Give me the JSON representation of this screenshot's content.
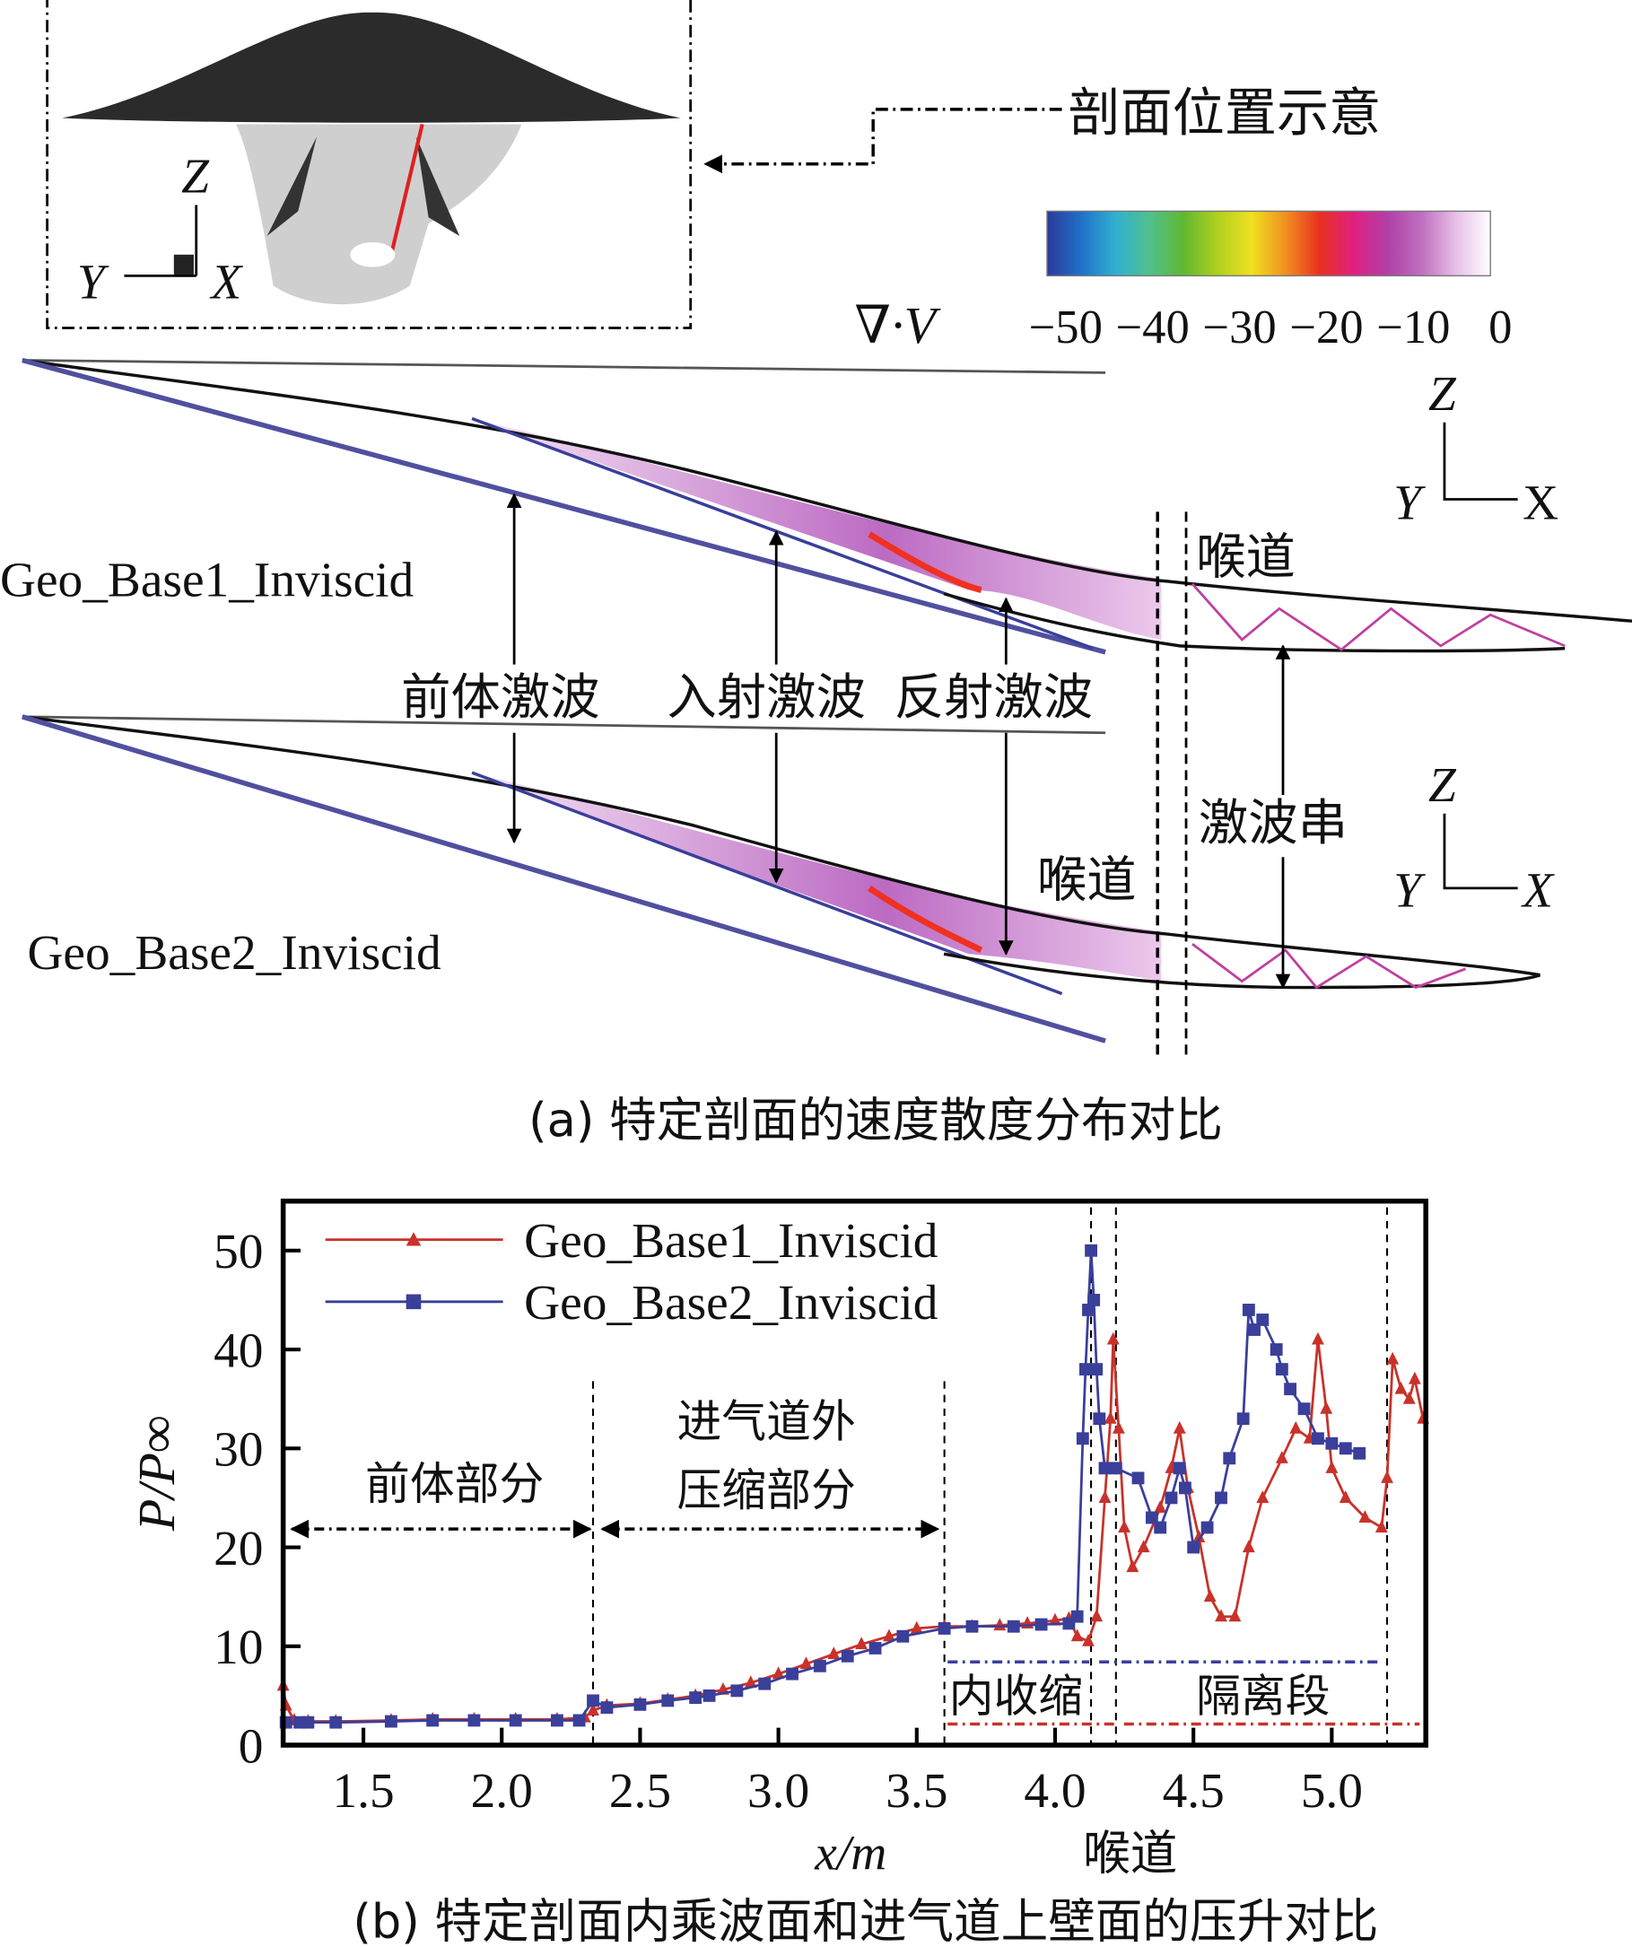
{
  "panel_a": {
    "inset_label": "剖面位置示意",
    "inset_axes": {
      "z": "Z",
      "y": "Y",
      "x": "X"
    },
    "colorbar": {
      "symbol": "∇·V",
      "ticks": [
        "−50",
        "−40",
        "−30",
        "−20",
        "−10",
        "0"
      ],
      "colors": [
        "#2a3a9a",
        "#2070c8",
        "#30b0d0",
        "#50c090",
        "#60b830",
        "#b0d020",
        "#f0e020",
        "#f09020",
        "#e83020",
        "#e02080",
        "#b040a8",
        "#c070c0",
        "#e8c0e8",
        "#ffffff"
      ]
    },
    "case1_label": "Geo_Base1_Inviscid",
    "case2_label": "Geo_Base2_Inviscid",
    "shock_labels": {
      "forebody": "前体激波",
      "incident": "入射激波",
      "reflected": "反射激波"
    },
    "throat_label_1": "喉道",
    "throat_label_2": "喉道",
    "shock_train_label": "激波串",
    "axes_1": {
      "z": "Z",
      "y": "Y",
      "x": "X"
    },
    "axes_2": {
      "z": "Z",
      "y": "Y",
      "x": "X"
    },
    "caption": "(a) 特定剖面的速度散度分布对比"
  },
  "panel_b": {
    "caption": "(b) 特定剖面内乘波面和进气道上壁面的压升对比",
    "throat_label": "喉道",
    "regions": {
      "forebody": "前体部分",
      "external_1": "进气道外",
      "external_2": "压缩部分",
      "internal": "内收缩",
      "isolator": "隔离段"
    }
  },
  "chart_data": {
    "type": "line",
    "title": "",
    "xlabel": "x/m",
    "ylabel": "P/P∞",
    "xlim": [
      1.21,
      5.34
    ],
    "ylim": [
      0,
      55
    ],
    "xticks": [
      "1.5",
      "2.0",
      "2.5",
      "3.0",
      "3.5",
      "4.0",
      "4.5",
      "5.0"
    ],
    "xtick_values": [
      1.5,
      2.0,
      2.5,
      3.0,
      3.5,
      4.0,
      4.5,
      5.0
    ],
    "yticks": [
      "0",
      "10",
      "20",
      "30",
      "40",
      "50"
    ],
    "ytick_values": [
      0,
      10,
      20,
      30,
      40,
      50
    ],
    "grid": false,
    "legend_position": "top-left",
    "region_boundaries": [
      2.33,
      3.6,
      4.13,
      4.22,
      5.2
    ],
    "series": [
      {
        "name": "Geo_Base1_Inviscid",
        "color": "#c8322a",
        "marker": "triangle",
        "x": [
          1.21,
          1.22,
          1.25,
          1.3,
          1.4,
          1.6,
          1.75,
          1.9,
          2.05,
          2.2,
          2.3,
          2.33,
          2.38,
          2.5,
          2.6,
          2.7,
          2.8,
          2.9,
          3.0,
          3.1,
          3.2,
          3.3,
          3.4,
          3.5,
          3.6,
          3.7,
          3.8,
          3.9,
          4.0,
          4.05,
          4.08,
          4.12,
          4.15,
          4.18,
          4.2,
          4.21,
          4.23,
          4.25,
          4.28,
          4.32,
          4.38,
          4.42,
          4.45,
          4.48,
          4.52,
          4.56,
          4.6,
          4.65,
          4.7,
          4.75,
          4.82,
          4.87,
          4.92,
          4.95,
          4.98,
          5.0,
          5.05,
          5.12,
          5.18,
          5.2,
          5.22,
          5.25,
          5.28,
          5.3,
          5.33
        ],
        "y": [
          6,
          4,
          2.5,
          2.4,
          2.4,
          2.5,
          2.6,
          2.6,
          2.6,
          2.6,
          2.8,
          3.5,
          4.0,
          4.2,
          4.6,
          5.0,
          5.6,
          6.3,
          7.2,
          8.2,
          9.2,
          10.2,
          11.0,
          11.8,
          12.0,
          12.0,
          12.1,
          12.3,
          12.6,
          12.8,
          11.0,
          10.5,
          13,
          25,
          33,
          41,
          32,
          22,
          18,
          20,
          24,
          28,
          32,
          26,
          21,
          15,
          13,
          13,
          20,
          25,
          29,
          32,
          31,
          41,
          34,
          28,
          25,
          23,
          22,
          27,
          39,
          36,
          35,
          37,
          33
        ]
      },
      {
        "name": "Geo_Base2_Inviscid",
        "color": "#3a3f9a",
        "marker": "square",
        "x": [
          1.22,
          1.27,
          1.3,
          1.4,
          1.6,
          1.75,
          1.9,
          2.05,
          2.2,
          2.28,
          2.33,
          2.38,
          2.5,
          2.6,
          2.7,
          2.75,
          2.85,
          2.95,
          3.05,
          3.15,
          3.25,
          3.35,
          3.45,
          3.6,
          3.7,
          3.85,
          3.95,
          4.05,
          4.08,
          4.1,
          4.11,
          4.12,
          4.13,
          4.14,
          4.15,
          4.16,
          4.18,
          4.22,
          4.3,
          4.35,
          4.38,
          4.42,
          4.45,
          4.47,
          4.5,
          4.55,
          4.6,
          4.63,
          4.68,
          4.7,
          4.72,
          4.75,
          4.8,
          4.82,
          4.85,
          4.9,
          4.95,
          5.0,
          5.05,
          5.1
        ],
        "y": [
          2.3,
          2.3,
          2.3,
          2.3,
          2.4,
          2.5,
          2.5,
          2.5,
          2.5,
          2.5,
          4.5,
          3.8,
          4.1,
          4.5,
          4.8,
          5.0,
          5.5,
          6.2,
          7.2,
          8.0,
          9.0,
          9.8,
          11.0,
          11.8,
          12.0,
          12.0,
          12.2,
          12.3,
          13,
          31,
          38,
          44,
          50,
          45,
          38,
          33,
          28,
          28,
          27,
          23,
          22,
          25,
          28,
          26,
          20,
          22,
          25,
          29,
          33,
          44,
          42,
          43,
          40,
          38,
          36,
          34,
          31,
          30.5,
          30,
          29.5
        ]
      }
    ]
  }
}
